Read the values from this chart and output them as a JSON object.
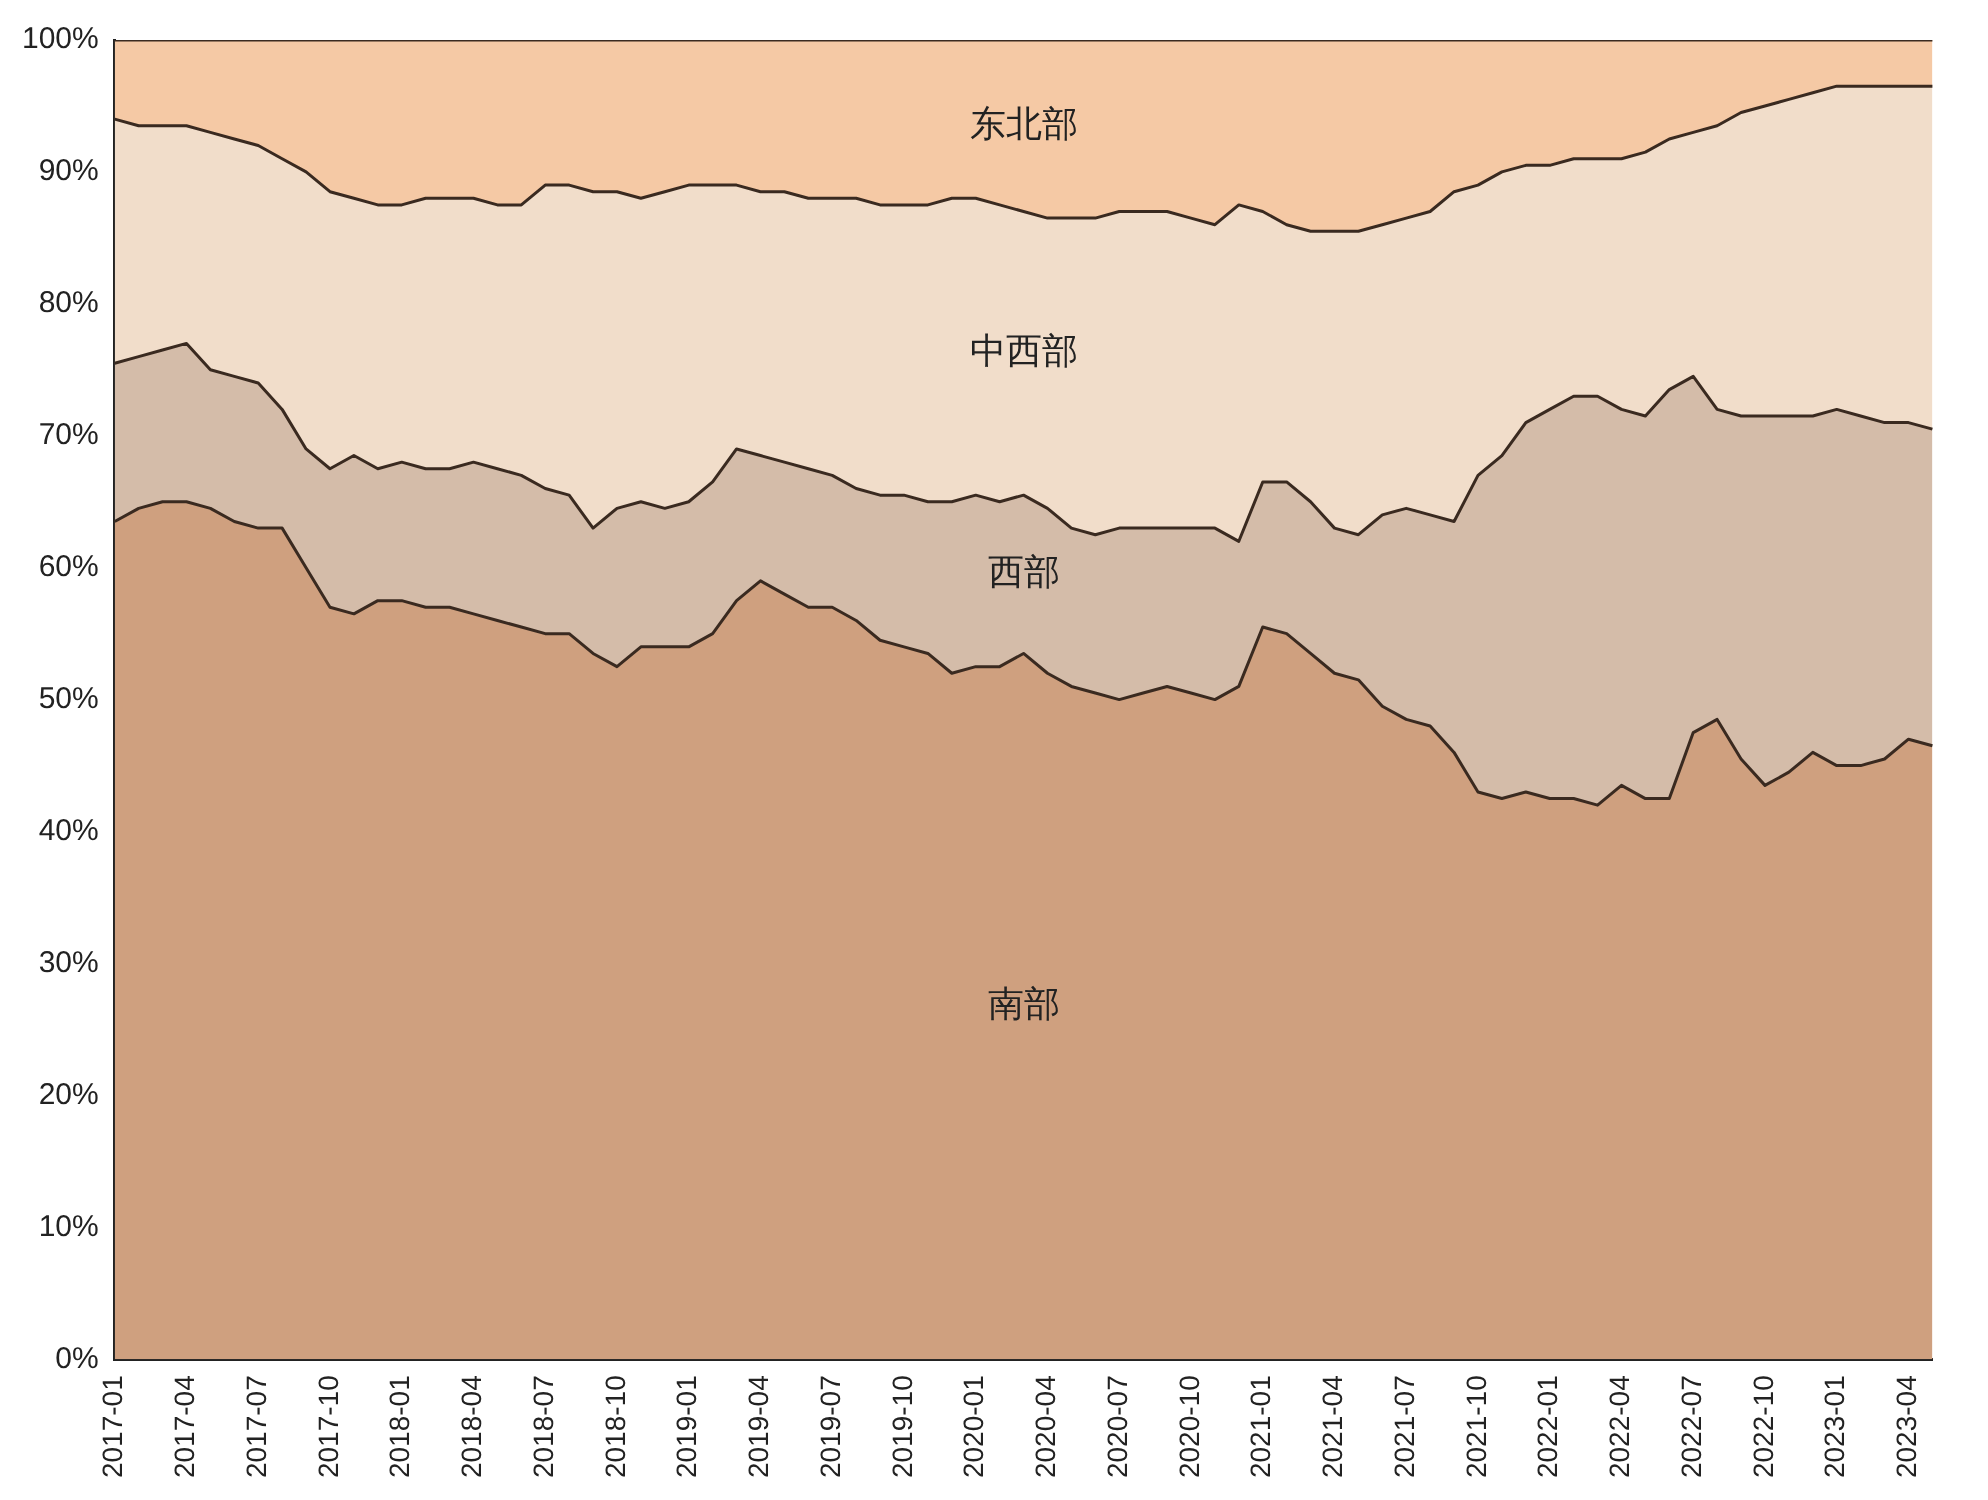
{
  "chart_data": {
    "type": "area",
    "stacked": true,
    "legend": false,
    "grid": false,
    "categories": [
      "2017-01",
      null,
      null,
      "2017-04",
      null,
      null,
      "2017-07",
      null,
      null,
      "2017-10",
      null,
      null,
      "2018-01",
      null,
      null,
      "2018-04",
      null,
      null,
      "2018-07",
      null,
      null,
      "2018-10",
      null,
      null,
      "2019-01",
      null,
      null,
      "2019-04",
      null,
      null,
      "2019-07",
      null,
      null,
      "2019-10",
      null,
      null,
      "2020-01",
      null,
      null,
      "2020-04",
      null,
      null,
      "2020-07",
      null,
      null,
      "2020-10",
      null,
      null,
      "2021-01",
      null,
      null,
      "2021-04",
      null,
      null,
      "2021-07",
      null,
      null,
      "2021-10",
      null,
      null,
      "2022-01",
      null,
      null,
      "2022-04",
      null,
      null,
      "2022-07",
      null,
      null,
      "2022-10",
      null,
      null,
      "2023-01",
      null,
      null,
      "2023-04",
      null
    ],
    "ylim": [
      0,
      100
    ],
    "yticks": [
      {
        "value": 0,
        "label": "0%"
      },
      {
        "value": 10,
        "label": "10%"
      },
      {
        "value": 20,
        "label": "20%"
      },
      {
        "value": 30,
        "label": "30%"
      },
      {
        "value": 40,
        "label": "40%"
      },
      {
        "value": 50,
        "label": "50%"
      },
      {
        "value": 60,
        "label": "60%"
      },
      {
        "value": 70,
        "label": "70%"
      },
      {
        "value": 80,
        "label": "80%"
      },
      {
        "value": 90,
        "label": "90%"
      },
      {
        "value": 100,
        "label": "100%"
      }
    ],
    "series": [
      {
        "name": "南部",
        "color": "#cfa07f",
        "values": [
          63.5,
          64.5,
          65,
          65,
          64.5,
          63.5,
          63,
          63,
          60,
          57,
          56.5,
          57.5,
          57.5,
          57,
          57,
          56.5,
          56,
          55.5,
          55,
          55,
          53.5,
          52.5,
          54,
          54,
          54,
          55,
          57.5,
          59,
          58,
          57,
          57,
          56,
          54.5,
          54,
          53.5,
          52,
          52.5,
          52.5,
          53.5,
          52,
          51,
          50.5,
          50,
          50.5,
          51,
          50.5,
          50,
          51,
          55.5,
          55,
          53.5,
          52,
          51.5,
          49.5,
          48.5,
          48,
          46,
          43,
          42.5,
          43,
          42.5,
          42.5,
          42,
          43.5,
          42.5,
          42.5,
          47.5,
          48.5,
          45.5,
          43.5,
          44.5,
          46,
          45,
          45,
          45.5,
          47,
          46.5
        ]
      },
      {
        "name": "西部",
        "color": "#d4bca9",
        "values": [
          12,
          11.5,
          11.5,
          12,
          10.5,
          11,
          11,
          9,
          9,
          10.5,
          12,
          10,
          10.5,
          10.5,
          10.5,
          11.5,
          11.5,
          11.5,
          11,
          10.5,
          9.5,
          12,
          11,
          10.5,
          11,
          11.5,
          11.5,
          9.5,
          10,
          10.5,
          10,
          10,
          11,
          11.5,
          11.5,
          13,
          13,
          12.5,
          12,
          12.5,
          12,
          12,
          13,
          12.5,
          12,
          12.5,
          13,
          11,
          11,
          11.5,
          11.5,
          11,
          11,
          14.5,
          16,
          16,
          17.5,
          24,
          26,
          28,
          29.5,
          30.5,
          31,
          28.5,
          29,
          31,
          27,
          23.5,
          26,
          28,
          27,
          25.5,
          27,
          26.5,
          25.5,
          24,
          24
        ]
      },
      {
        "name": "中西部",
        "color": "#f1ddca",
        "values": [
          18.5,
          17.5,
          17,
          16.5,
          18,
          18,
          18,
          19,
          21,
          21,
          19.5,
          20,
          19.5,
          20.5,
          20.5,
          20,
          20,
          20.5,
          23,
          23.5,
          25.5,
          24,
          23,
          24,
          24,
          22.5,
          20,
          20,
          20.5,
          20.5,
          21,
          22,
          22,
          22,
          22.5,
          23,
          22.5,
          22.5,
          21.5,
          22,
          23.5,
          24,
          24,
          24,
          24,
          23.5,
          23,
          25.5,
          20.5,
          19.5,
          20.5,
          22.5,
          23,
          22,
          22,
          23,
          25,
          22,
          21.5,
          19.5,
          18.5,
          18,
          18,
          19,
          20,
          19,
          18.5,
          21.5,
          23,
          23.5,
          24,
          24.5,
          24.5,
          25,
          25.5,
          25.5,
          26
        ]
      },
      {
        "name": "东北部",
        "color": "#f5c9a5",
        "values": [
          6,
          6.5,
          6.5,
          6.5,
          7,
          7.5,
          8,
          9,
          10,
          11.5,
          12,
          12.5,
          12.5,
          12,
          12,
          12,
          12.5,
          12.5,
          11,
          11,
          11.5,
          11.5,
          12,
          11.5,
          11,
          11,
          11,
          11.5,
          11.5,
          12,
          12,
          12,
          12.5,
          12.5,
          12.5,
          12,
          12,
          12.5,
          13,
          13.5,
          13.5,
          13.5,
          13,
          13,
          13,
          13.5,
          14,
          12.5,
          13,
          14,
          14.5,
          14.5,
          14.5,
          14,
          13.5,
          13,
          11.5,
          11,
          10,
          9.5,
          9.5,
          9,
          9,
          9,
          8.5,
          7.5,
          7,
          6.5,
          5.5,
          5,
          4.5,
          4,
          3.5,
          3.5,
          3.5,
          3.5,
          3.5
        ]
      }
    ]
  }
}
